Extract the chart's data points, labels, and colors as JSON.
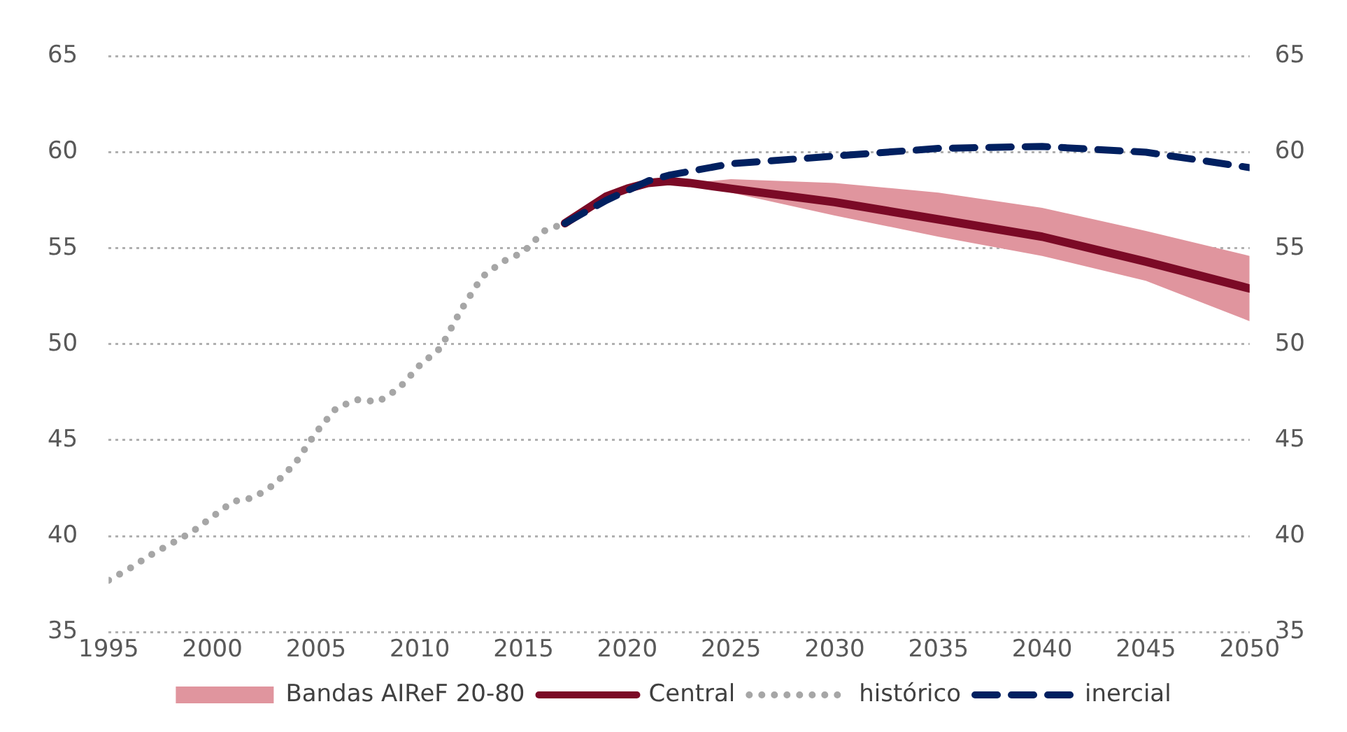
{
  "chart_data": {
    "type": "line",
    "xlim": [
      1995,
      2050
    ],
    "xticks": [
      1995,
      2000,
      2005,
      2010,
      2015,
      2020,
      2025,
      2030,
      2035,
      2040,
      2045,
      2050
    ],
    "ylim": [
      35,
      65
    ],
    "yticks": [
      35,
      40,
      45,
      50,
      55,
      60,
      65
    ],
    "y2lim": [
      35,
      65
    ],
    "y2ticks": [
      35,
      40,
      45,
      50,
      55,
      60,
      65
    ],
    "grid": "y",
    "legend": "bottom",
    "marker": "none",
    "series": [
      {
        "name": "Bandas AIReF 20-80",
        "type": "area",
        "color": "#e0959e"
      },
      {
        "name": "Central",
        "type": "line",
        "color": "#7b0a26",
        "line_style": "solid",
        "x": [
          2017,
          2018,
          2019,
          2020,
          2021,
          2022,
          2023,
          2025,
          2030,
          2035,
          2040,
          2045,
          2050
        ],
        "values": [
          56.3,
          57.0,
          57.7,
          58.1,
          58.4,
          58.5,
          58.4,
          58.1,
          57.4,
          56.5,
          55.6,
          54.3,
          52.9
        ],
        "lower": [
          56.3,
          57.0,
          57.7,
          58.1,
          58.4,
          58.5,
          58.4,
          57.9,
          56.7,
          55.6,
          54.6,
          53.3,
          51.2
        ],
        "upper": [
          56.3,
          57.0,
          57.7,
          58.1,
          58.4,
          58.5,
          58.4,
          58.6,
          58.4,
          57.9,
          57.1,
          55.9,
          54.6
        ]
      },
      {
        "name": "histórico",
        "type": "line",
        "color": "#a6a6a6",
        "line_style": "dotted",
        "x": [
          1995,
          1996,
          1997,
          1998,
          1999,
          2000,
          2001,
          2002,
          2003,
          2004,
          2005,
          2006,
          2007,
          2008,
          2009,
          2010,
          2011,
          2012,
          2013,
          2014,
          2015,
          2016,
          2017
        ],
        "values": [
          37.7,
          38.3,
          39.0,
          39.6,
          40.2,
          41.0,
          41.8,
          42.0,
          42.7,
          43.8,
          45.4,
          46.7,
          47.1,
          47.0,
          47.7,
          48.9,
          49.8,
          51.8,
          53.5,
          54.3,
          54.8,
          55.9,
          56.3
        ]
      },
      {
        "name": "inercial",
        "type": "line",
        "color": "#002060",
        "line_style": "dashed",
        "x": [
          2017,
          2018,
          2019,
          2020,
          2021,
          2022,
          2025,
          2030,
          2035,
          2040,
          2045,
          2050
        ],
        "values": [
          56.3,
          56.9,
          57.5,
          58.0,
          58.5,
          58.8,
          59.4,
          59.8,
          60.2,
          60.3,
          60.0,
          59.2
        ]
      }
    ]
  }
}
